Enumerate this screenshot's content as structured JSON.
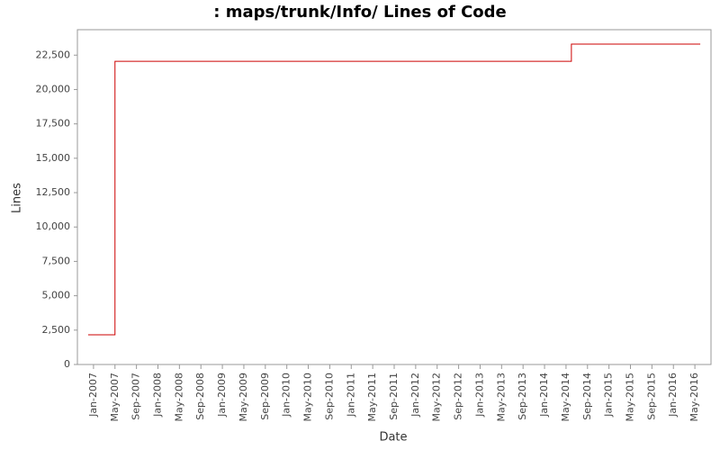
{
  "chart_data": {
    "type": "line",
    "title": ": maps/trunk/Info/ Lines of Code",
    "x_label": "Date",
    "y_label": "Lines",
    "x": [
      "Dec-2006",
      "May-2007",
      "May-2007",
      "Jun-2014",
      "Jun-2014",
      "Jun-2014",
      "Jun-2016"
    ],
    "series": [
      {
        "name": "Lines",
        "color": "#cc0000",
        "values": [
          2160,
          2160,
          22050,
          22050,
          22100,
          23300,
          23300
        ]
      }
    ],
    "xlim": [
      "Oct-2006",
      "Aug-2016"
    ],
    "xticks": [
      "Jan-2007",
      "May-2007",
      "Sep-2007",
      "Jan-2008",
      "May-2008",
      "Sep-2008",
      "Jan-2009",
      "May-2009",
      "Sep-2009",
      "Jan-2010",
      "May-2010",
      "Sep-2010",
      "Jan-2011",
      "May-2011",
      "Sep-2011",
      "Jan-2012",
      "May-2012",
      "Sep-2012",
      "Jan-2013",
      "May-2013",
      "Sep-2013",
      "Jan-2014",
      "May-2014",
      "Sep-2014",
      "Jan-2015",
      "May-2015",
      "Sep-2015",
      "Jan-2016",
      "May-2016"
    ],
    "ylim": [
      0,
      24350
    ],
    "yticks": [
      0,
      {
        "value": 2500,
        "label": "2,500"
      },
      {
        "value": 5000,
        "label": "5,000"
      },
      {
        "value": 7500,
        "label": "7,500"
      },
      {
        "value": 10000,
        "label": "10,000"
      },
      {
        "value": 12500,
        "label": "12,500"
      },
      {
        "value": 15000,
        "label": "15,000"
      },
      {
        "value": 17500,
        "label": "17,500"
      },
      {
        "value": 20000,
        "label": "20,000"
      },
      {
        "value": 22500,
        "label": "22,500"
      }
    ],
    "grid": false
  }
}
